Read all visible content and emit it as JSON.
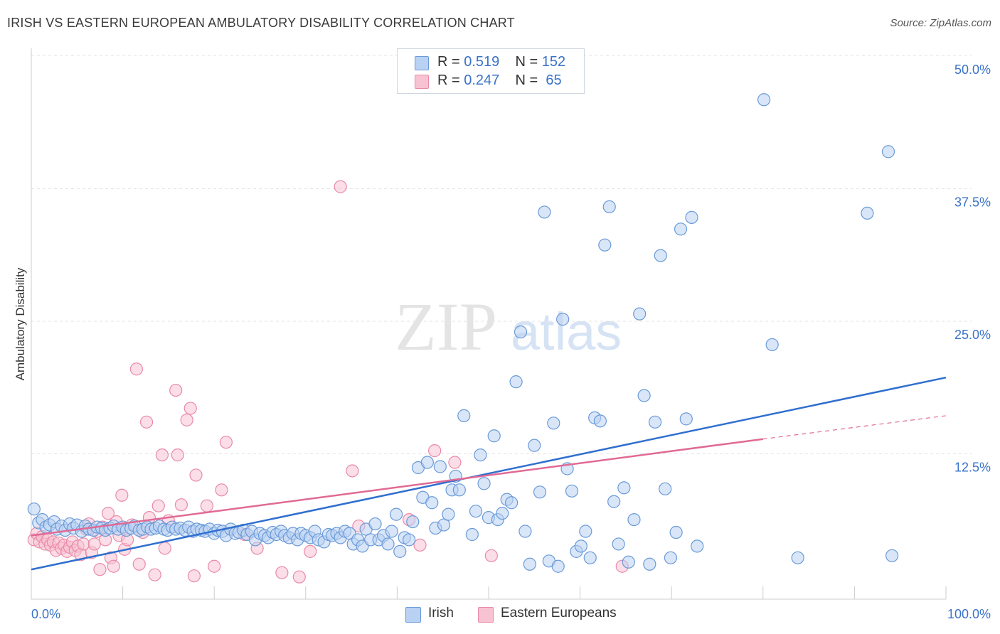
{
  "title": "IRISH VS EASTERN EUROPEAN AMBULATORY DISABILITY CORRELATION CHART",
  "source": "Source: ZipAtlas.com",
  "watermark": {
    "zip": "ZIP",
    "atlas": "atlas"
  },
  "legend": {
    "r_label": "R =",
    "n_label": "N =",
    "irish": {
      "r": "0.519",
      "n": "152"
    },
    "eastern": {
      "r": "0.247",
      "n": "65"
    }
  },
  "bottom_legend": {
    "irish": "Irish",
    "eastern": "Eastern Europeans"
  },
  "colors": {
    "irish_fill": "#b9d1f2",
    "irish_stroke": "#6a9ad8",
    "irish_line": "#2f6fcf",
    "eastern_fill": "#f7c3d3",
    "eastern_stroke": "#e98aa8",
    "eastern_line": "#e06a95",
    "tick_label": "#3a72c8",
    "grid": "#e3e3e3"
  },
  "chart_data": {
    "type": "scatter",
    "xlabel": "",
    "ylabel": "Ambulatory Disability",
    "xlim": [
      0,
      100
    ],
    "ylim": [
      0,
      50
    ],
    "x_tick_labels": [
      "0.0%",
      "100.0%"
    ],
    "y_ticks": [
      12.5,
      25.0,
      37.5,
      50.0
    ],
    "y_tick_labels": [
      "12.5%",
      "25.0%",
      "37.5%",
      "50.0%"
    ],
    "grid": "horizontal dashed",
    "legend_placement": "top-center",
    "series": [
      {
        "name": "Irish",
        "trend": {
          "x": [
            0,
            100
          ],
          "y": [
            2.8,
            20.9
          ]
        },
        "points": [
          [
            0.3,
            8.5
          ],
          [
            0.8,
            7.2
          ],
          [
            1.2,
            7.5
          ],
          [
            1.6,
            6.8
          ],
          [
            2.0,
            7.0
          ],
          [
            2.5,
            7.3
          ],
          [
            2.8,
            6.6
          ],
          [
            3.3,
            6.9
          ],
          [
            3.7,
            6.5
          ],
          [
            4.2,
            7.1
          ],
          [
            4.6,
            6.7
          ],
          [
            5.0,
            7.0
          ],
          [
            5.5,
            6.4
          ],
          [
            5.9,
            6.9
          ],
          [
            6.3,
            6.6
          ],
          [
            6.8,
            6.5
          ],
          [
            7.2,
            6.8
          ],
          [
            7.7,
            6.7
          ],
          [
            8.1,
            6.5
          ],
          [
            8.6,
            6.7
          ],
          [
            9.0,
            6.9
          ],
          [
            9.5,
            6.6
          ],
          [
            10.0,
            6.8
          ],
          [
            10.4,
            6.5
          ],
          [
            10.9,
            6.7
          ],
          [
            11.3,
            6.9
          ],
          [
            11.8,
            6.5
          ],
          [
            12.2,
            6.6
          ],
          [
            12.7,
            6.8
          ],
          [
            13.1,
            6.6
          ],
          [
            13.6,
            6.7
          ],
          [
            14.0,
            6.9
          ],
          [
            14.5,
            6.6
          ],
          [
            14.9,
            6.5
          ],
          [
            15.4,
            6.8
          ],
          [
            15.8,
            6.6
          ],
          [
            16.3,
            6.7
          ],
          [
            16.8,
            6.5
          ],
          [
            17.2,
            6.8
          ],
          [
            17.7,
            6.4
          ],
          [
            18.1,
            6.6
          ],
          [
            18.6,
            6.5
          ],
          [
            19.0,
            6.4
          ],
          [
            19.5,
            6.6
          ],
          [
            20.0,
            6.2
          ],
          [
            20.4,
            6.5
          ],
          [
            20.9,
            6.4
          ],
          [
            21.3,
            6.0
          ],
          [
            21.8,
            6.6
          ],
          [
            22.3,
            6.2
          ],
          [
            22.7,
            6.3
          ],
          [
            23.2,
            6.5
          ],
          [
            23.6,
            6.1
          ],
          [
            24.1,
            6.4
          ],
          [
            24.5,
            5.6
          ],
          [
            25.0,
            6.2
          ],
          [
            25.5,
            6.0
          ],
          [
            25.9,
            5.8
          ],
          [
            26.4,
            6.3
          ],
          [
            26.8,
            6.1
          ],
          [
            27.3,
            6.4
          ],
          [
            27.7,
            6.0
          ],
          [
            28.2,
            5.8
          ],
          [
            28.6,
            6.2
          ],
          [
            29.1,
            5.6
          ],
          [
            29.5,
            6.2
          ],
          [
            30.0,
            6.0
          ],
          [
            30.5,
            5.8
          ],
          [
            31.0,
            6.4
          ],
          [
            31.4,
            5.6
          ],
          [
            32.0,
            5.4
          ],
          [
            32.5,
            6.1
          ],
          [
            32.9,
            6.0
          ],
          [
            33.4,
            6.2
          ],
          [
            33.8,
            5.8
          ],
          [
            34.3,
            6.4
          ],
          [
            34.8,
            6.2
          ],
          [
            35.2,
            5.2
          ],
          [
            35.7,
            5.6
          ],
          [
            36.2,
            5.0
          ],
          [
            36.6,
            6.6
          ],
          [
            37.1,
            5.6
          ],
          [
            37.6,
            7.1
          ],
          [
            38.0,
            5.6
          ],
          [
            38.5,
            6.0
          ],
          [
            39.0,
            5.2
          ],
          [
            39.4,
            6.4
          ],
          [
            39.9,
            8.0
          ],
          [
            40.3,
            4.5
          ],
          [
            40.8,
            5.8
          ],
          [
            41.3,
            5.6
          ],
          [
            41.7,
            7.3
          ],
          [
            42.3,
            12.4
          ],
          [
            42.8,
            9.6
          ],
          [
            43.3,
            12.9
          ],
          [
            43.8,
            9.1
          ],
          [
            44.2,
            6.7
          ],
          [
            44.7,
            12.5
          ],
          [
            45.1,
            7.0
          ],
          [
            45.6,
            8.0
          ],
          [
            46.0,
            10.3
          ],
          [
            46.4,
            11.6
          ],
          [
            46.8,
            10.3
          ],
          [
            47.3,
            17.3
          ],
          [
            48.2,
            6.1
          ],
          [
            48.6,
            8.3
          ],
          [
            49.1,
            13.6
          ],
          [
            49.5,
            10.9
          ],
          [
            50.0,
            7.7
          ],
          [
            50.6,
            15.4
          ],
          [
            51.0,
            7.5
          ],
          [
            51.5,
            8.1
          ],
          [
            52.0,
            9.4
          ],
          [
            52.5,
            9.1
          ],
          [
            53.0,
            20.5
          ],
          [
            53.5,
            25.2
          ],
          [
            54.0,
            6.4
          ],
          [
            54.5,
            3.3
          ],
          [
            55.0,
            14.5
          ],
          [
            55.6,
            10.1
          ],
          [
            56.1,
            36.5
          ],
          [
            56.6,
            3.6
          ],
          [
            57.1,
            16.6
          ],
          [
            57.6,
            3.1
          ],
          [
            58.1,
            26.4
          ],
          [
            58.6,
            12.3
          ],
          [
            59.1,
            10.2
          ],
          [
            59.6,
            4.5
          ],
          [
            60.1,
            5.0
          ],
          [
            60.6,
            6.4
          ],
          [
            61.1,
            3.9
          ],
          [
            61.6,
            17.1
          ],
          [
            62.2,
            16.8
          ],
          [
            62.7,
            33.4
          ],
          [
            63.2,
            37.0
          ],
          [
            63.7,
            9.2
          ],
          [
            64.2,
            5.2
          ],
          [
            64.8,
            10.5
          ],
          [
            65.3,
            3.5
          ],
          [
            65.9,
            7.5
          ],
          [
            66.5,
            26.9
          ],
          [
            67.0,
            19.2
          ],
          [
            67.6,
            3.3
          ],
          [
            68.2,
            16.7
          ],
          [
            68.8,
            32.4
          ],
          [
            69.3,
            10.4
          ],
          [
            69.9,
            3.9
          ],
          [
            70.5,
            6.3
          ],
          [
            71.0,
            34.9
          ],
          [
            71.6,
            17.0
          ],
          [
            72.2,
            36.0
          ],
          [
            72.8,
            5.0
          ],
          [
            80.1,
            47.1
          ],
          [
            81.0,
            24.0
          ],
          [
            83.8,
            3.9
          ],
          [
            91.4,
            36.4
          ],
          [
            93.7,
            42.2
          ],
          [
            94.1,
            4.1
          ]
        ]
      },
      {
        "name": "Eastern Europeans",
        "trend": {
          "x": [
            0,
            80
          ],
          "y": [
            6.0,
            15.1
          ]
        },
        "trend_dashed": {
          "x": [
            80,
            100
          ],
          "y": [
            15.1,
            17.3
          ]
        },
        "points": [
          [
            0.3,
            5.6
          ],
          [
            0.6,
            6.2
          ],
          [
            0.9,
            5.4
          ],
          [
            1.2,
            5.9
          ],
          [
            1.5,
            5.2
          ],
          [
            1.8,
            5.6
          ],
          [
            2.1,
            5.1
          ],
          [
            2.4,
            5.4
          ],
          [
            2.7,
            4.6
          ],
          [
            3.0,
            5.3
          ],
          [
            3.3,
            4.8
          ],
          [
            3.6,
            5.1
          ],
          [
            3.9,
            4.5
          ],
          [
            4.2,
            4.9
          ],
          [
            4.5,
            5.4
          ],
          [
            4.8,
            4.6
          ],
          [
            5.1,
            5.0
          ],
          [
            5.4,
            4.2
          ],
          [
            5.7,
            5.2
          ],
          [
            6.0,
            6.6
          ],
          [
            6.3,
            7.1
          ],
          [
            6.6,
            4.4
          ],
          [
            6.9,
            5.2
          ],
          [
            7.2,
            6.4
          ],
          [
            7.5,
            2.8
          ],
          [
            7.8,
            6.8
          ],
          [
            8.1,
            5.6
          ],
          [
            8.4,
            8.1
          ],
          [
            8.7,
            3.9
          ],
          [
            9.0,
            3.1
          ],
          [
            9.3,
            7.3
          ],
          [
            9.6,
            6.0
          ],
          [
            9.9,
            9.8
          ],
          [
            10.2,
            4.7
          ],
          [
            10.5,
            5.6
          ],
          [
            11.0,
            7.0
          ],
          [
            11.5,
            21.7
          ],
          [
            11.8,
            3.3
          ],
          [
            12.2,
            6.3
          ],
          [
            12.6,
            16.7
          ],
          [
            12.9,
            7.7
          ],
          [
            13.5,
            2.3
          ],
          [
            13.9,
            8.8
          ],
          [
            14.3,
            13.6
          ],
          [
            14.6,
            4.8
          ],
          [
            15.0,
            7.4
          ],
          [
            15.8,
            19.7
          ],
          [
            16.0,
            13.6
          ],
          [
            16.4,
            8.9
          ],
          [
            17.0,
            16.9
          ],
          [
            17.4,
            18.0
          ],
          [
            17.8,
            2.2
          ],
          [
            18.0,
            11.7
          ],
          [
            19.2,
            8.8
          ],
          [
            20.0,
            3.1
          ],
          [
            20.8,
            10.3
          ],
          [
            21.3,
            14.8
          ],
          [
            23.3,
            6.1
          ],
          [
            24.7,
            4.8
          ],
          [
            27.4,
            2.5
          ],
          [
            29.3,
            2.1
          ],
          [
            30.5,
            4.5
          ],
          [
            33.8,
            38.9
          ],
          [
            35.1,
            12.1
          ],
          [
            35.8,
            6.9
          ],
          [
            41.3,
            7.5
          ],
          [
            42.5,
            5.1
          ],
          [
            44.1,
            14.0
          ],
          [
            46.3,
            12.9
          ],
          [
            50.3,
            4.1
          ],
          [
            64.6,
            3.1
          ]
        ]
      }
    ]
  }
}
